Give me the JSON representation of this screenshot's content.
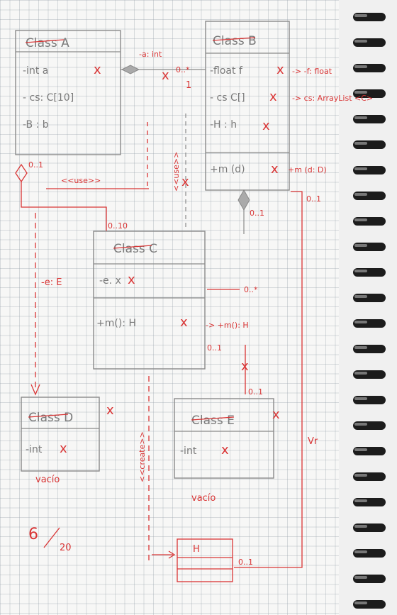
{
  "classA": {
    "name": "Class A",
    "attrs": [
      "-int a",
      "- cs: C[10]",
      "-B : b"
    ]
  },
  "classB": {
    "name": "Class B",
    "attrs": [
      "-float f",
      "- cs C[]",
      "-H : h"
    ],
    "method": "+m (d)",
    "method_correction": "+m (d: D)"
  },
  "classC": {
    "name": "Class C",
    "attrs": [
      "-e. x"
    ],
    "method": "+m(): H"
  },
  "classD": {
    "name": "Class D",
    "attrs": [
      "-int"
    ],
    "note": "vacío"
  },
  "classE": {
    "name": "Class E",
    "attrs": [
      "-int"
    ],
    "note": "vacío"
  },
  "classH": {
    "name": "H"
  },
  "corrections": {
    "a_b_link": "-a: int",
    "f_float": "-> -f: float",
    "cs_arraylist": "-> cs: ArrayList <C>",
    "use_label": "<<use>>",
    "use_label2": "<<use>>",
    "e_label": "-e: E",
    "m_h": "-> +m(): H",
    "create_label": "<<create>>",
    "vr": "Vr"
  },
  "multiplicities": {
    "a_left": "0..1",
    "ab_star": "0..*",
    "ab_one": "1",
    "c_010": "0..10",
    "b_01": "0..1",
    "c_0star": "0..*",
    "c_01": "0..1",
    "e_01": "0..1",
    "right_01": "0..1",
    "h_01": "0..1"
  },
  "marks": {
    "x": "x"
  },
  "grade": {
    "score": "6",
    "total": "20"
  }
}
